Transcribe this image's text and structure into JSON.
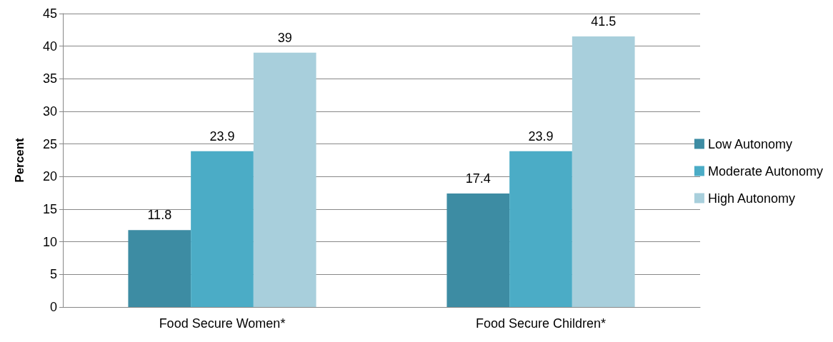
{
  "chart_data": {
    "type": "bar",
    "ylabel": "Percent",
    "categories": [
      "Food Secure Women*",
      "Food Secure Children*"
    ],
    "series": [
      {
        "name": "Low Autonomy",
        "color": "#3d8ca3",
        "values": [
          11.8,
          17.4
        ]
      },
      {
        "name": "Moderate Autonomy",
        "color": "#4bacc6",
        "values": [
          23.9,
          23.9
        ]
      },
      {
        "name": "High Autonomy",
        "color": "#a8cfdc",
        "values": [
          39,
          41.5
        ]
      }
    ],
    "ylim": [
      0,
      45
    ],
    "yticks": [
      0,
      5,
      10,
      15,
      20,
      25,
      30,
      35,
      40,
      45
    ],
    "grid": "y",
    "legend": "right",
    "data_labels": true
  }
}
